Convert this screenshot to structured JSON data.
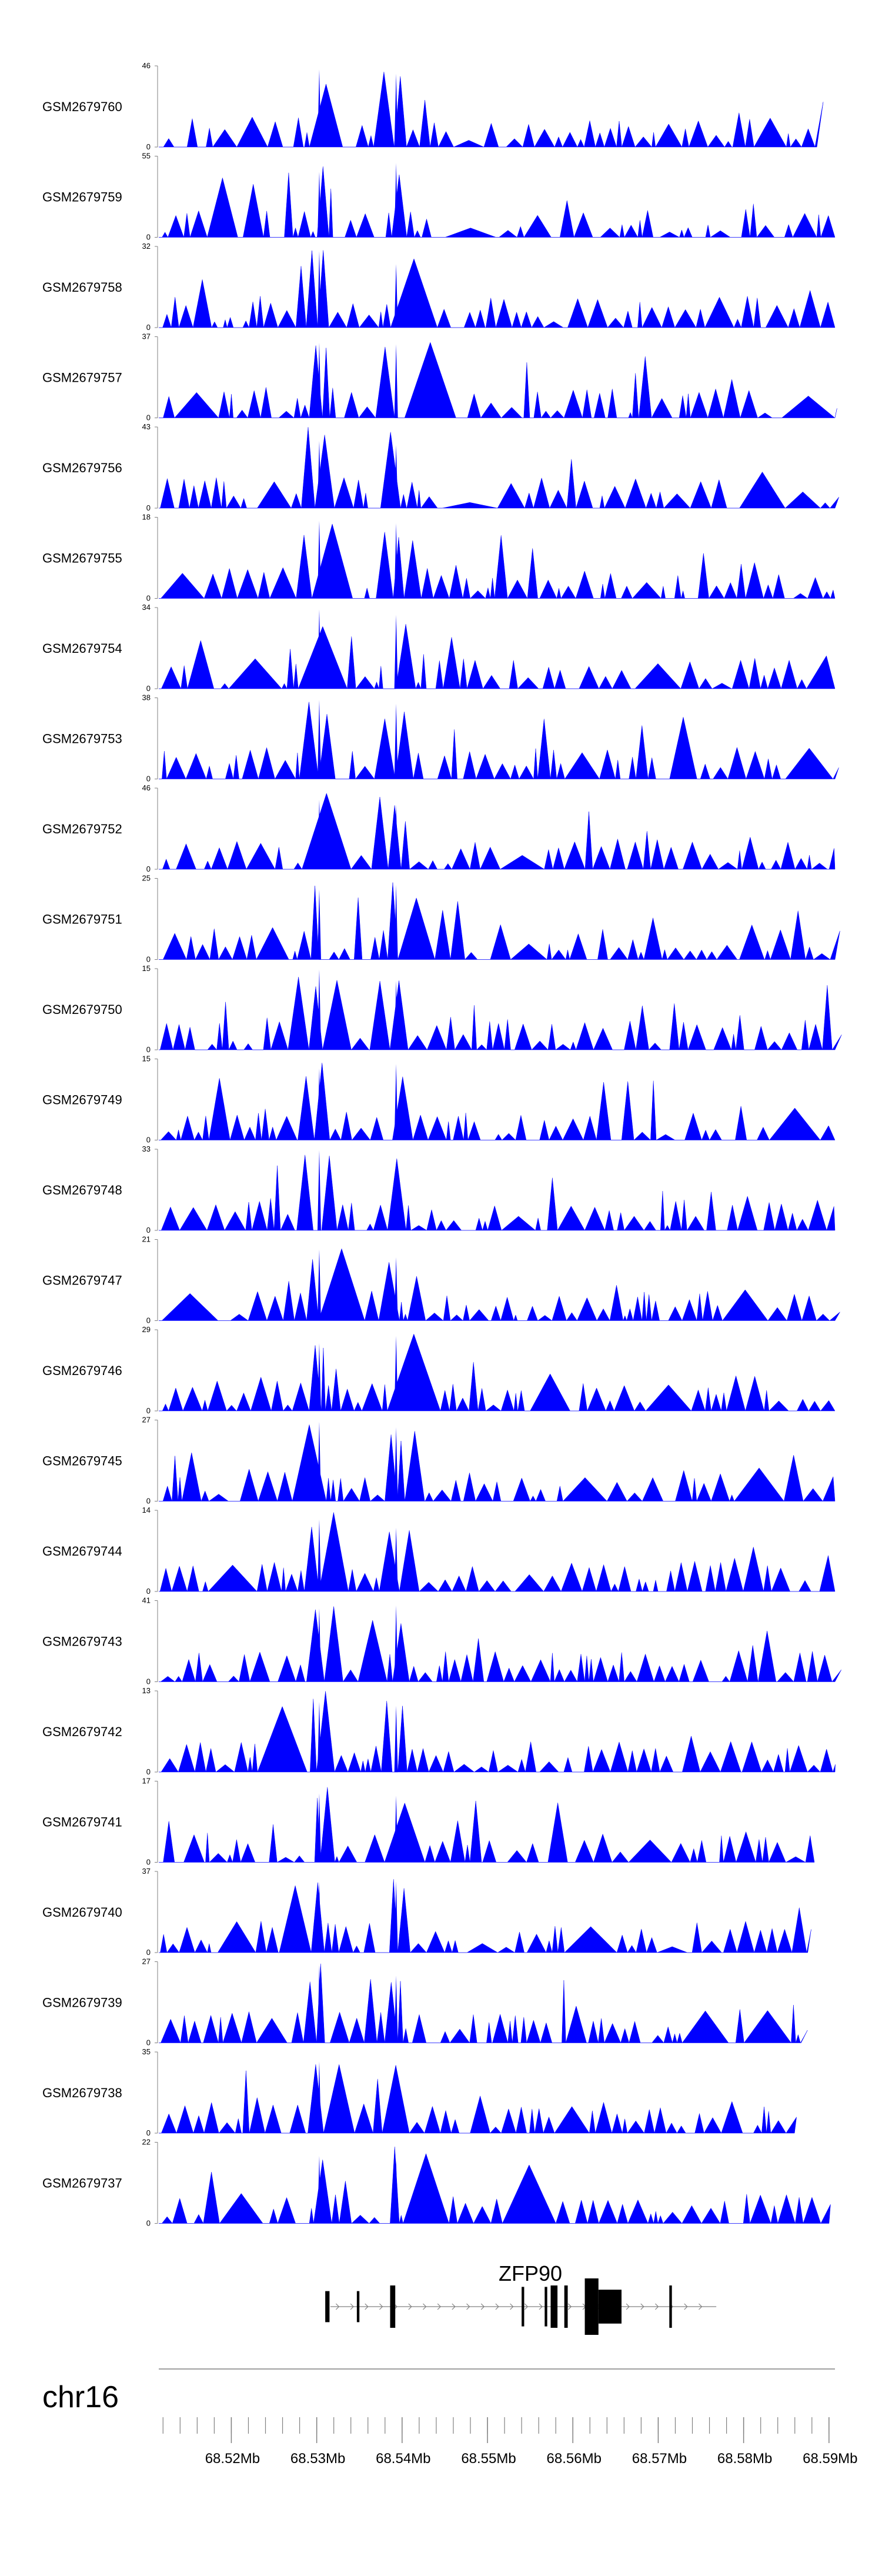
{
  "chart_data": {
    "type": "area",
    "title": "",
    "chromosome": "chr16",
    "xlim": [
      68.5115,
      68.5907
    ],
    "series_color": "#0000ff",
    "tracks": [
      {
        "name": "GSM2679760",
        "ymax": 46,
        "ymin": 0,
        "seed": 101
      },
      {
        "name": "GSM2679759",
        "ymax": 55,
        "ymin": 0,
        "seed": 202
      },
      {
        "name": "GSM2679758",
        "ymax": 32,
        "ymin": 0,
        "seed": 303
      },
      {
        "name": "GSM2679757",
        "ymax": 37,
        "ymin": 0,
        "seed": 404
      },
      {
        "name": "GSM2679756",
        "ymax": 43,
        "ymin": 0,
        "seed": 505
      },
      {
        "name": "GSM2679755",
        "ymax": 18,
        "ymin": 0,
        "seed": 606
      },
      {
        "name": "GSM2679754",
        "ymax": 34,
        "ymin": 0,
        "seed": 707
      },
      {
        "name": "GSM2679753",
        "ymax": 38,
        "ymin": 0,
        "seed": 808
      },
      {
        "name": "GSM2679752",
        "ymax": 46,
        "ymin": 0,
        "seed": 909
      },
      {
        "name": "GSM2679751",
        "ymax": 25,
        "ymin": 0,
        "seed": 1010
      },
      {
        "name": "GSM2679750",
        "ymax": 15,
        "ymin": 0,
        "seed": 1111
      },
      {
        "name": "GSM2679749",
        "ymax": 15,
        "ymin": 0,
        "seed": 1212
      },
      {
        "name": "GSM2679748",
        "ymax": 33,
        "ymin": 0,
        "seed": 1313
      },
      {
        "name": "GSM2679747",
        "ymax": 21,
        "ymin": 0,
        "seed": 1414
      },
      {
        "name": "GSM2679746",
        "ymax": 29,
        "ymin": 0,
        "seed": 1515
      },
      {
        "name": "GSM2679745",
        "ymax": 27,
        "ymin": 0,
        "seed": 1616
      },
      {
        "name": "GSM2679744",
        "ymax": 14,
        "ymin": 0,
        "seed": 1717
      },
      {
        "name": "GSM2679743",
        "ymax": 41,
        "ymin": 0,
        "seed": 1818
      },
      {
        "name": "GSM2679742",
        "ymax": 13,
        "ymin": 0,
        "seed": 1919
      },
      {
        "name": "GSM2679741",
        "ymax": 17,
        "ymin": 0,
        "seed": 2020
      },
      {
        "name": "GSM2679740",
        "ymax": 37,
        "ymin": 0,
        "seed": 2121
      },
      {
        "name": "GSM2679739",
        "ymax": 27,
        "ymin": 0,
        "seed": 2222
      },
      {
        "name": "GSM2679738",
        "ymax": 35,
        "ymin": 0,
        "seed": 2323
      },
      {
        "name": "GSM2679737",
        "ymax": 22,
        "ymin": 0,
        "seed": 2424
      }
    ],
    "peaks": [
      {
        "pos": 68.5303,
        "rel": 1.0
      },
      {
        "pos": 68.5393,
        "rel": 0.95
      },
      {
        "pos": 68.5148,
        "rel": 0.35
      },
      {
        "pos": 68.5238,
        "rel": 0.4
      },
      {
        "pos": 68.562,
        "rel": 0.35
      },
      {
        "pos": 68.5805,
        "rel": 0.45
      }
    ],
    "gene": {
      "name": "ZFP90",
      "start": 68.5316,
      "end": 68.5768,
      "exons": [
        {
          "start": 68.531,
          "end": 68.5315,
          "h": 0.55
        },
        {
          "start": 68.5347,
          "end": 68.535,
          "h": 0.55
        },
        {
          "start": 68.5386,
          "end": 68.5392,
          "h": 0.75
        },
        {
          "start": 68.554,
          "end": 68.5543,
          "h": 0.7
        },
        {
          "start": 68.5567,
          "end": 68.557,
          "h": 0.7
        },
        {
          "start": 68.5574,
          "end": 68.5582,
          "h": 0.75
        },
        {
          "start": 68.559,
          "end": 68.5594,
          "h": 0.75
        },
        {
          "start": 68.5614,
          "end": 68.563,
          "h": 1.0
        },
        {
          "start": 68.563,
          "end": 68.5657,
          "h": 0.6
        },
        {
          "start": 68.5713,
          "end": 68.5716,
          "h": 0.75
        }
      ]
    },
    "xticks_major": [
      68.52,
      68.53,
      68.54,
      68.55,
      68.56,
      68.57,
      68.58,
      68.59
    ],
    "xtick_labels": [
      "68.52Mb",
      "68.53Mb",
      "68.54Mb",
      "68.55Mb",
      "68.56Mb",
      "68.57Mb",
      "68.58Mb",
      "68.59Mb"
    ],
    "xtick_minor_step": 0.002
  }
}
